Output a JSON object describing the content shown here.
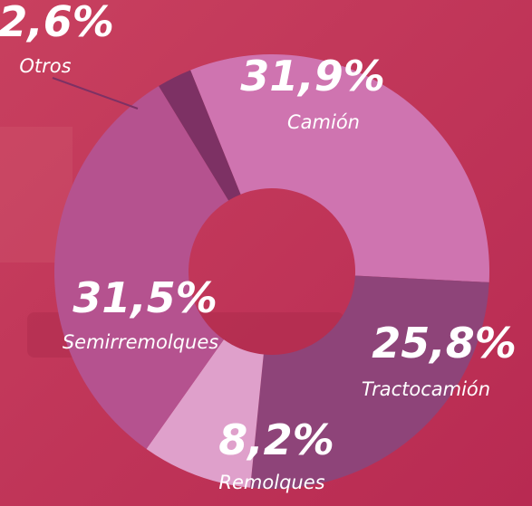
{
  "chart_data": {
    "type": "pie",
    "categories": [
      "Camión",
      "Tractocamión",
      "Remolques",
      "Semirremolques",
      "Otros"
    ],
    "values": [
      31.9,
      25.8,
      8.2,
      31.5,
      2.6
    ],
    "value_labels": [
      "31,9%",
      "25,8%",
      "8,2%",
      "31,5%",
      "2,6%"
    ],
    "colors": [
      "#cf74b0",
      "#8e4479",
      "#dfa0cb",
      "#b5528f",
      "#7d3164"
    ]
  }
}
